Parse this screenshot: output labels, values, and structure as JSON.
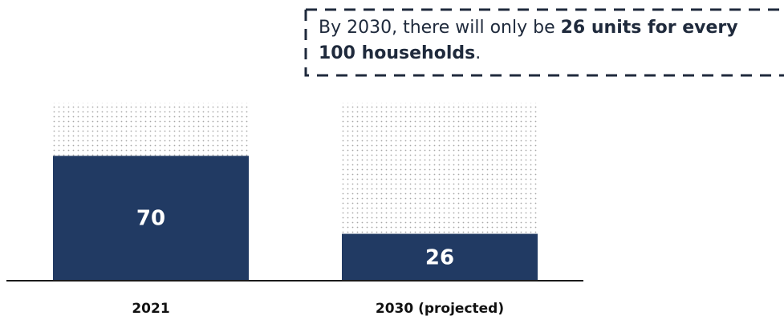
{
  "callout": {
    "text_before": "By 2030, there will only be ",
    "text_bold": "26 units for every 100 households",
    "text_after": "."
  },
  "colors": {
    "bar": "#213a63",
    "dots": "#a8a8a8",
    "baseline": "#1a1a1a",
    "callout_border": "#1f2a3c"
  },
  "chart_data": {
    "type": "bar",
    "categories": [
      "2021",
      "2030 (projected)"
    ],
    "values": [
      70,
      26
    ],
    "data_labels": [
      "70",
      "26"
    ],
    "ylim": [
      0,
      100
    ],
    "background_total": 100,
    "grid": false,
    "legend": "none"
  }
}
